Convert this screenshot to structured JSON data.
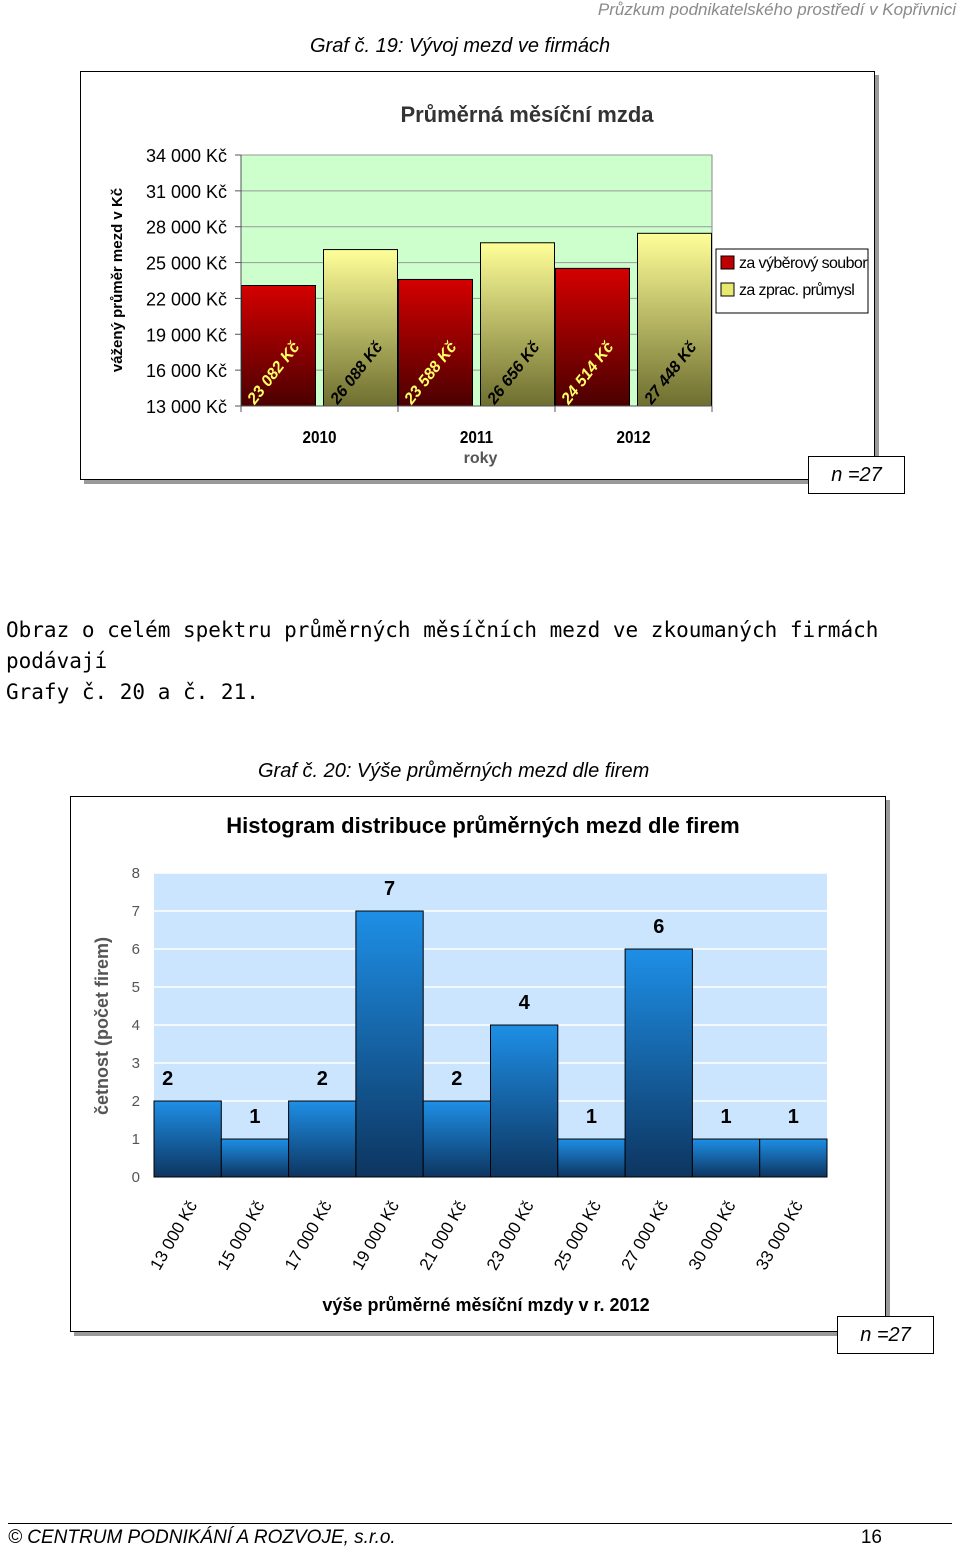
{
  "header": {
    "subtitle": "Průzkum podnikatelského prostředí v Kopřivnici"
  },
  "chart1": {
    "caption": "Graf č. 19:  Vývoj mezd ve firmách",
    "n_label": "n =27"
  },
  "paragraph": {
    "line1": "Obraz o celém spektru průměrných měsíčních mezd ve zkoumaných firmách podávají",
    "line2": "Grafy č. 20 a č. 21."
  },
  "chart2": {
    "caption": "Graf č. 20:  Výše průměrných mezd dle firem",
    "n_label": "n =27"
  },
  "footer": {
    "left": "©  CENTRUM PODNIKÁNÍ A ROZVOJE, s.r.o.",
    "page": "16"
  },
  "chart_data": [
    {
      "type": "bar",
      "title": "Průměrná měsíční mzda",
      "xlabel": "roky",
      "ylabel": "vážený průměr mezd v Kč",
      "categories": [
        "2010",
        "2011",
        "2012"
      ],
      "ylim": [
        13000,
        34000
      ],
      "yticks": [
        13000,
        16000,
        19000,
        22000,
        25000,
        28000,
        31000,
        34000
      ],
      "ytick_labels": [
        "13 000 Kč",
        "16 000 Kč",
        "19 000 Kč",
        "22 000 Kč",
        "25 000 Kč",
        "28 000 Kč",
        "31 000 Kč",
        "34 000 Kč"
      ],
      "legend_position": "right",
      "grid": true,
      "colors": {
        "series1": "#c00000",
        "series2": "#f2f28a",
        "plot_bg": "#ccffcc"
      },
      "series": [
        {
          "name": "za výběrový soubor",
          "values": [
            23082,
            23588,
            24514
          ],
          "labels": [
            "23 082 Kč",
            "23 588 Kč",
            "24 514 Kč"
          ]
        },
        {
          "name": "za zprac. průmysl",
          "values": [
            26088,
            26656,
            27448
          ],
          "labels": [
            "26 088 Kč",
            "26 656 Kč",
            "27 448 Kč"
          ]
        }
      ]
    },
    {
      "type": "bar",
      "title": "Histogram distribuce průměrných mezd dle firem",
      "xlabel": "výše průměrné měsíční mzdy v r. 2012",
      "ylabel": "četnost (počet firem)",
      "categories": [
        "13 000 Kč",
        "15 000 Kč",
        "17 000 Kč",
        "19 000 Kč",
        "21 000 Kč",
        "23 000 Kč",
        "25 000 Kč",
        "27 000 Kč",
        "30 000 Kč",
        "33 000 Kč"
      ],
      "values": [
        2,
        1,
        2,
        7,
        2,
        4,
        1,
        6,
        1,
        1
      ],
      "ylim": [
        0,
        8
      ],
      "yticks": [
        0,
        1,
        2,
        3,
        4,
        5,
        6,
        7,
        8
      ],
      "grid": true,
      "colors": {
        "bar_top": "#1e8fe6",
        "bar_bottom": "#0d3560",
        "plot_bg": "#cce5ff"
      }
    }
  ]
}
